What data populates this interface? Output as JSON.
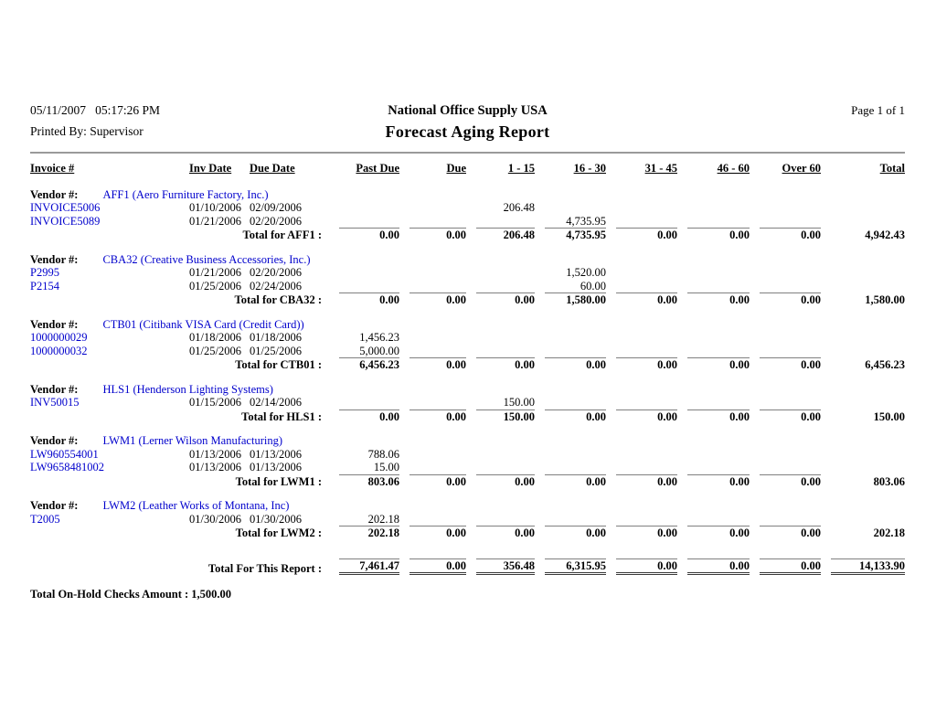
{
  "header": {
    "datetime": "05/11/2007   05:17:26 PM",
    "printed_by": "Printed By: Supervisor",
    "company": "National Office Supply USA",
    "title": "Forecast Aging Report",
    "page": "Page 1 of  1"
  },
  "table": {
    "columns": [
      "Invoice #",
      "Inv Date",
      "Due Date",
      "Past Due",
      "Due",
      "1 - 15",
      "16 - 30",
      "31 - 45",
      "46 - 60",
      "Over 60",
      "Total"
    ],
    "vendor_label": "Vendor #:",
    "vendors": [
      {
        "name": "AFF1 (Aero Furniture Factory, Inc.)",
        "invoices": [
          {
            "id": "INVOICE5006",
            "inv_date": "01/10/2006",
            "due_date": "02/09/2006",
            "amounts": [
              "",
              "",
              "206.48",
              "",
              "",
              "",
              "",
              ""
            ]
          },
          {
            "id": "INVOICE5089",
            "inv_date": "01/21/2006",
            "due_date": "02/20/2006",
            "amounts": [
              "",
              "",
              "",
              "4,735.95",
              "",
              "",
              "",
              ""
            ]
          }
        ],
        "total_label": "Total for AFF1 :",
        "totals": [
          "0.00",
          "0.00",
          "206.48",
          "4,735.95",
          "0.00",
          "0.00",
          "0.00",
          "4,942.43"
        ]
      },
      {
        "name": "CBA32 (Creative Business Accessories, Inc.)",
        "invoices": [
          {
            "id": "P2995",
            "inv_date": "01/21/2006",
            "due_date": "02/20/2006",
            "amounts": [
              "",
              "",
              "",
              "1,520.00",
              "",
              "",
              "",
              ""
            ]
          },
          {
            "id": "P2154",
            "inv_date": "01/25/2006",
            "due_date": "02/24/2006",
            "amounts": [
              "",
              "",
              "",
              "60.00",
              "",
              "",
              "",
              ""
            ]
          }
        ],
        "total_label": "Total for CBA32 :",
        "totals": [
          "0.00",
          "0.00",
          "0.00",
          "1,580.00",
          "0.00",
          "0.00",
          "0.00",
          "1,580.00"
        ]
      },
      {
        "name": "CTB01 (Citibank VISA Card (Credit Card))",
        "invoices": [
          {
            "id": "1000000029",
            "inv_date": "01/18/2006",
            "due_date": "01/18/2006",
            "amounts": [
              "1,456.23",
              "",
              "",
              "",
              "",
              "",
              "",
              ""
            ]
          },
          {
            "id": "1000000032",
            "inv_date": "01/25/2006",
            "due_date": "01/25/2006",
            "amounts": [
              "5,000.00",
              "",
              "",
              "",
              "",
              "",
              "",
              ""
            ]
          }
        ],
        "total_label": "Total for CTB01 :",
        "totals": [
          "6,456.23",
          "0.00",
          "0.00",
          "0.00",
          "0.00",
          "0.00",
          "0.00",
          "6,456.23"
        ]
      },
      {
        "name": "HLS1 (Henderson Lighting Systems)",
        "invoices": [
          {
            "id": "INV50015",
            "inv_date": "01/15/2006",
            "due_date": "02/14/2006",
            "amounts": [
              "",
              "",
              "150.00",
              "",
              "",
              "",
              "",
              ""
            ]
          }
        ],
        "total_label": "Total for HLS1 :",
        "totals": [
          "0.00",
          "0.00",
          "150.00",
          "0.00",
          "0.00",
          "0.00",
          "0.00",
          "150.00"
        ]
      },
      {
        "name": "LWM1 (Lerner Wilson Manufacturing)",
        "invoices": [
          {
            "id": "LW960554001",
            "inv_date": "01/13/2006",
            "due_date": "01/13/2006",
            "amounts": [
              "788.06",
              "",
              "",
              "",
              "",
              "",
              "",
              ""
            ]
          },
          {
            "id": "LW9658481002",
            "inv_date": "01/13/2006",
            "due_date": "01/13/2006",
            "amounts": [
              "15.00",
              "",
              "",
              "",
              "",
              "",
              "",
              ""
            ]
          }
        ],
        "total_label": "Total for LWM1 :",
        "totals": [
          "803.06",
          "0.00",
          "0.00",
          "0.00",
          "0.00",
          "0.00",
          "0.00",
          "803.06"
        ]
      },
      {
        "name": "LWM2 (Leather Works of Montana, Inc)",
        "invoices": [
          {
            "id": "T2005",
            "inv_date": "01/30/2006",
            "due_date": "01/30/2006",
            "amounts": [
              "202.18",
              "",
              "",
              "",
              "",
              "",
              "",
              ""
            ]
          }
        ],
        "total_label": "Total for LWM2 :",
        "totals": [
          "202.18",
          "0.00",
          "0.00",
          "0.00",
          "0.00",
          "0.00",
          "0.00",
          "202.18"
        ]
      }
    ],
    "grand_total": {
      "label": "Total For This Report :",
      "values": [
        "7,461.47",
        "0.00",
        "356.48",
        "6,315.95",
        "0.00",
        "0.00",
        "0.00",
        "14,133.90"
      ]
    }
  },
  "footer": {
    "on_hold_total": "Total On-Hold Checks Amount : 1,500.00"
  }
}
